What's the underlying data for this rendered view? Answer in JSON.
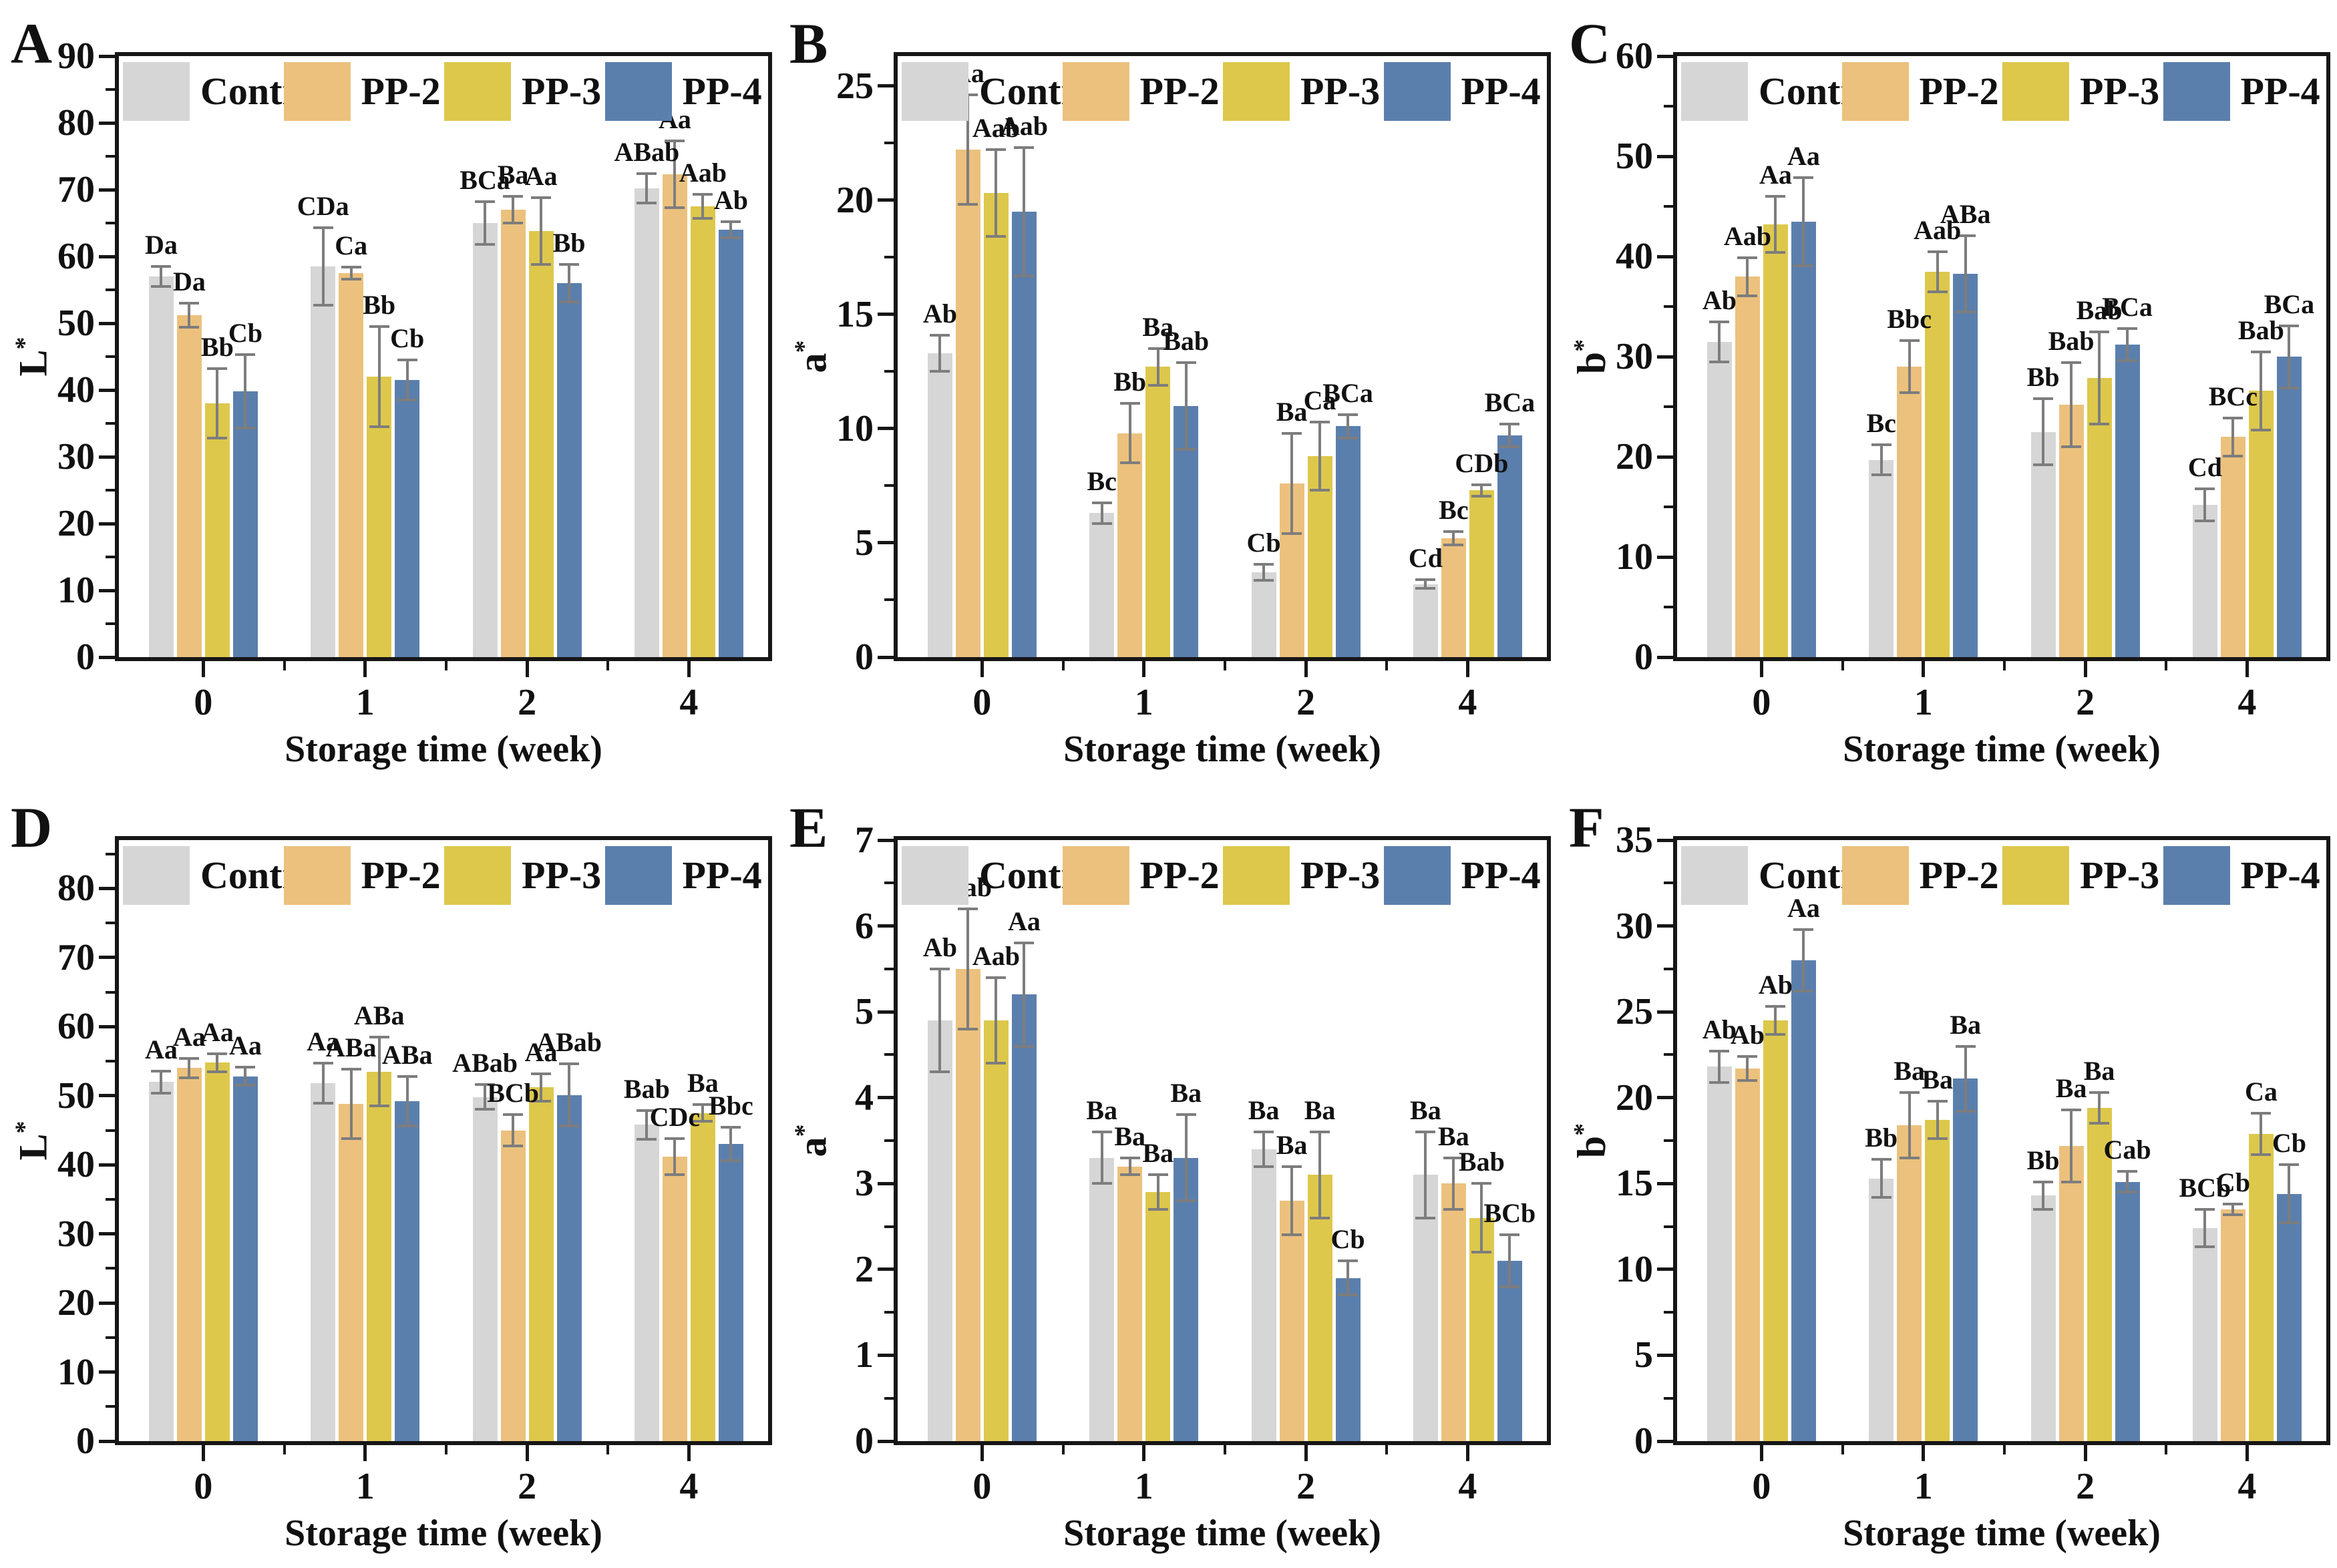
{
  "figure_colors": {
    "control": "#d6d6d6",
    "pp2": "#ecc17d",
    "pp3": "#ddc84c",
    "pp4": "#5b7fad",
    "error_bar": "#7d7d7d",
    "axis": "#161616"
  },
  "chart_data": [
    {
      "type": "bar",
      "panel": "A",
      "ylabel": "L",
      "ylabel_sup": "*",
      "xlabel": "Storage time (week)",
      "categories": [
        "0",
        "1",
        "2",
        "4"
      ],
      "ylim": [
        0,
        90
      ],
      "ytop": 90,
      "yticks": [
        0,
        10,
        20,
        30,
        40,
        50,
        60,
        70,
        80,
        90
      ],
      "grid": false,
      "legend_position": "top-inside",
      "series": [
        {
          "name": "Control",
          "color": "#d6d6d6",
          "values": [
            57.0,
            58.5,
            65.0,
            70.2
          ],
          "errors": [
            1.5,
            5.8,
            3.2,
            2.2
          ],
          "sig_labels": [
            "Da",
            "CDa",
            "BCa",
            "ABab"
          ]
        },
        {
          "name": "PP-2",
          "color": "#ecc17d",
          "values": [
            51.2,
            57.5,
            67.0,
            72.3
          ],
          "errors": [
            1.8,
            0.9,
            2.0,
            5.0
          ],
          "sig_labels": [
            "Da",
            "Ca",
            "Ba",
            "Aa"
          ]
        },
        {
          "name": "PP-3",
          "color": "#ddc84c",
          "values": [
            38.0,
            42.0,
            63.8,
            67.5
          ],
          "errors": [
            5.2,
            7.5,
            5.0,
            1.8
          ],
          "sig_labels": [
            "Bb",
            "Bb",
            "Aa",
            "Aab"
          ]
        },
        {
          "name": "PP-4",
          "color": "#5b7fad",
          "values": [
            39.8,
            41.5,
            56.0,
            64.0
          ],
          "errors": [
            5.5,
            3.0,
            2.8,
            1.2
          ],
          "sig_labels": [
            "Cb",
            "Cb",
            "Bb",
            "Ab"
          ]
        }
      ]
    },
    {
      "type": "bar",
      "panel": "B",
      "ylabel": "a",
      "ylabel_sup": "*",
      "xlabel": "Storage time (week)",
      "categories": [
        "0",
        "1",
        "2",
        "4"
      ],
      "ylim": [
        0,
        26.3
      ],
      "ytop": 26.3,
      "yticks": [
        0,
        5,
        10,
        15,
        20,
        25
      ],
      "grid": false,
      "legend_position": "top-inside",
      "series": [
        {
          "name": "Control",
          "color": "#d6d6d6",
          "values": [
            13.3,
            6.3,
            3.7,
            3.2
          ],
          "errors": [
            0.8,
            0.45,
            0.35,
            0.2
          ],
          "sig_labels": [
            "Ab",
            "Bc",
            "Cb",
            "Cd"
          ]
        },
        {
          "name": "PP-2",
          "color": "#ecc17d",
          "values": [
            22.2,
            9.8,
            7.6,
            5.2
          ],
          "errors": [
            2.4,
            1.3,
            2.2,
            0.3
          ],
          "sig_labels": [
            "Aa",
            "Bb",
            "Ba",
            "Bc"
          ]
        },
        {
          "name": "PP-3",
          "color": "#ddc84c",
          "values": [
            20.3,
            12.7,
            8.8,
            7.3
          ],
          "errors": [
            1.9,
            0.8,
            1.5,
            0.25
          ],
          "sig_labels": [
            "Aab",
            "Ba",
            "Ca",
            "CDb"
          ]
        },
        {
          "name": "PP-4",
          "color": "#5b7fad",
          "values": [
            19.5,
            11.0,
            10.1,
            9.7
          ],
          "errors": [
            2.8,
            1.9,
            0.5,
            0.5
          ],
          "sig_labels": [
            "Aab",
            "Bab",
            "BCa",
            "BCa"
          ]
        }
      ]
    },
    {
      "type": "bar",
      "panel": "C",
      "ylabel": "b",
      "ylabel_sup": "*",
      "xlabel": "Storage time (week)",
      "categories": [
        "0",
        "1",
        "2",
        "4"
      ],
      "ylim": [
        0,
        60
      ],
      "ytop": 60,
      "yticks": [
        0,
        10,
        20,
        30,
        40,
        50,
        60
      ],
      "grid": false,
      "legend_position": "top-inside",
      "series": [
        {
          "name": "Control",
          "color": "#d6d6d6",
          "values": [
            31.5,
            19.7,
            22.5,
            15.2
          ],
          "errors": [
            2.0,
            1.5,
            3.3,
            1.6
          ],
          "sig_labels": [
            "Ab",
            "Bc",
            "Bb",
            "Cd"
          ]
        },
        {
          "name": "PP-2",
          "color": "#ecc17d",
          "values": [
            38.0,
            29.0,
            25.2,
            22.0
          ],
          "errors": [
            1.9,
            2.6,
            4.2,
            1.9
          ],
          "sig_labels": [
            "Aab",
            "Bbc",
            "Bab",
            "BCc"
          ]
        },
        {
          "name": "PP-3",
          "color": "#ddc84c",
          "values": [
            43.2,
            38.5,
            27.9,
            26.6
          ],
          "errors": [
            2.8,
            2.0,
            4.6,
            3.9
          ],
          "sig_labels": [
            "Aa",
            "Aab",
            "Bab",
            "Bab"
          ]
        },
        {
          "name": "PP-4",
          "color": "#5b7fad",
          "values": [
            43.5,
            38.3,
            31.2,
            30.0
          ],
          "errors": [
            4.4,
            3.8,
            1.6,
            3.1
          ],
          "sig_labels": [
            "Aa",
            "ABa",
            "BCa",
            "BCa"
          ]
        }
      ]
    },
    {
      "type": "bar",
      "panel": "D",
      "ylabel": "L",
      "ylabel_sup": "*",
      "xlabel": "Storage time (week)",
      "categories": [
        "0",
        "1",
        "2",
        "4"
      ],
      "ylim": [
        0,
        87
      ],
      "ytop": 87,
      "yticks": [
        0,
        10,
        20,
        30,
        40,
        50,
        60,
        70,
        80
      ],
      "grid": false,
      "legend_position": "top-inside",
      "series": [
        {
          "name": "Control",
          "color": "#d6d6d6",
          "values": [
            52.0,
            51.8,
            49.8,
            45.8
          ],
          "errors": [
            1.6,
            2.9,
            1.8,
            2.1
          ],
          "sig_labels": [
            "Aa",
            "Aa",
            "ABab",
            "Bab"
          ]
        },
        {
          "name": "PP-2",
          "color": "#ecc17d",
          "values": [
            54.0,
            48.8,
            45.0,
            41.2
          ],
          "errors": [
            1.4,
            5.0,
            2.3,
            2.6
          ],
          "sig_labels": [
            "Aa",
            "ABa",
            "BCb",
            "CDc"
          ]
        },
        {
          "name": "PP-3",
          "color": "#ddc84c",
          "values": [
            54.8,
            53.5,
            51.2,
            47.5
          ],
          "errors": [
            1.3,
            5.0,
            2.0,
            1.2
          ],
          "sig_labels": [
            "Aa",
            "ABa",
            "Aa",
            "Ba"
          ]
        },
        {
          "name": "PP-4",
          "color": "#5b7fad",
          "values": [
            52.8,
            49.2,
            50.1,
            43.0
          ],
          "errors": [
            1.3,
            3.6,
            4.5,
            2.4
          ],
          "sig_labels": [
            "Aa",
            "ABa",
            "ABab",
            "Bbc"
          ]
        }
      ]
    },
    {
      "type": "bar",
      "panel": "E",
      "ylabel": "a",
      "ylabel_sup": "*",
      "xlabel": "Storage time (week)",
      "categories": [
        "0",
        "1",
        "2",
        "4"
      ],
      "ylim": [
        0,
        7
      ],
      "ytop": 7,
      "yticks": [
        0,
        1,
        2,
        3,
        4,
        5,
        6,
        7
      ],
      "grid": false,
      "legend_position": "top-inside",
      "series": [
        {
          "name": "Control",
          "color": "#d6d6d6",
          "values": [
            4.9,
            3.3,
            3.4,
            3.1
          ],
          "errors": [
            0.6,
            0.3,
            0.2,
            0.5
          ],
          "sig_labels": [
            "Ab",
            "Ba",
            "Ba",
            "Ba"
          ]
        },
        {
          "name": "PP-2",
          "color": "#ecc17d",
          "values": [
            5.5,
            3.2,
            2.8,
            3.0
          ],
          "errors": [
            0.7,
            0.1,
            0.4,
            0.3
          ],
          "sig_labels": [
            "Aab",
            "Ba",
            "Ba",
            "Ba"
          ]
        },
        {
          "name": "PP-3",
          "color": "#ddc84c",
          "values": [
            4.9,
            2.9,
            3.1,
            2.6
          ],
          "errors": [
            0.5,
            0.2,
            0.5,
            0.4
          ],
          "sig_labels": [
            "Aab",
            "Ba",
            "Ba",
            "Bab"
          ]
        },
        {
          "name": "PP-4",
          "color": "#5b7fad",
          "values": [
            5.2,
            3.3,
            1.9,
            2.1
          ],
          "errors": [
            0.6,
            0.5,
            0.2,
            0.3
          ],
          "sig_labels": [
            "Aa",
            "Ba",
            "Cb",
            "BCb"
          ]
        }
      ]
    },
    {
      "type": "bar",
      "panel": "F",
      "ylabel": "b",
      "ylabel_sup": "*",
      "xlabel": "Storage time (week)",
      "categories": [
        "0",
        "1",
        "2",
        "4"
      ],
      "ylim": [
        0,
        35
      ],
      "ytop": 35,
      "yticks": [
        0,
        5,
        10,
        15,
        20,
        25,
        30,
        35
      ],
      "grid": false,
      "legend_position": "top-inside",
      "series": [
        {
          "name": "Control",
          "color": "#d6d6d6",
          "values": [
            21.8,
            15.3,
            14.3,
            12.4
          ],
          "errors": [
            0.9,
            1.1,
            0.8,
            1.1
          ],
          "sig_labels": [
            "Ab",
            "Bb",
            "Bb",
            "BCb"
          ]
        },
        {
          "name": "PP-2",
          "color": "#ecc17d",
          "values": [
            21.7,
            18.4,
            17.2,
            13.5
          ],
          "errors": [
            0.7,
            1.9,
            2.1,
            0.3
          ],
          "sig_labels": [
            "Ab",
            "Ba",
            "Ba",
            "Cb"
          ]
        },
        {
          "name": "PP-3",
          "color": "#ddc84c",
          "values": [
            24.5,
            18.7,
            19.4,
            17.9
          ],
          "errors": [
            0.8,
            1.1,
            0.9,
            1.2
          ],
          "sig_labels": [
            "Ab",
            "Ba",
            "Ba",
            "Ca"
          ]
        },
        {
          "name": "PP-4",
          "color": "#5b7fad",
          "values": [
            28.0,
            21.1,
            15.1,
            14.4
          ],
          "errors": [
            1.8,
            1.9,
            0.6,
            1.7
          ],
          "sig_labels": [
            "Aa",
            "Ba",
            "Cab",
            "Cb"
          ]
        }
      ]
    }
  ]
}
